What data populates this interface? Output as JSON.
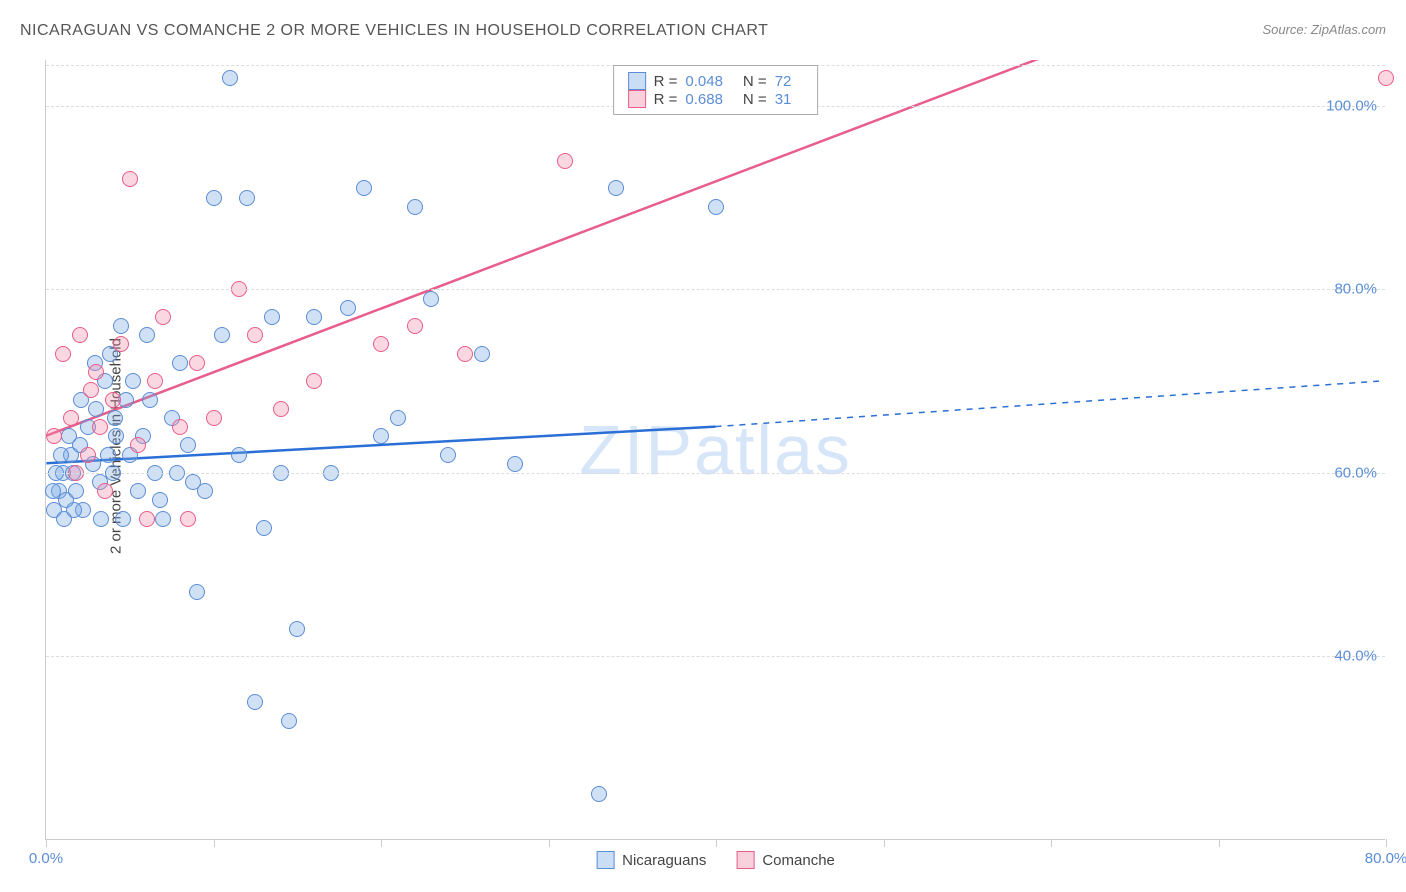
{
  "title": "NICARAGUAN VS COMANCHE 2 OR MORE VEHICLES IN HOUSEHOLD CORRELATION CHART",
  "source": "Source: ZipAtlas.com",
  "ylabel": "2 or more Vehicles in Household",
  "watermark_zip": "ZIP",
  "watermark_atlas": "atlas",
  "chart": {
    "type": "scatter",
    "xlim": [
      0,
      80
    ],
    "ylim": [
      20,
      105
    ],
    "xticks": [
      0,
      10,
      20,
      30,
      40,
      50,
      60,
      70,
      80
    ],
    "xtick_labels_show": [
      0,
      80
    ],
    "yticks": [
      40,
      60,
      80,
      100
    ],
    "ytick_fmt": "{v}.0%",
    "xtick_fmt": "{v}.0%",
    "background_color": "#ffffff",
    "grid_color": "#dddddd",
    "axis_color": "#cccccc",
    "label_color_axis": "#5b8dd6",
    "point_radius": 8,
    "series": [
      {
        "name": "Nicaraguans",
        "color_fill": "rgba(120,170,230,0.35)",
        "color_stroke": "#5b8dd6",
        "line_color": "#2a6fd6",
        "line_width": 2.5,
        "R": "0.048",
        "N": "72",
        "trend": {
          "x1": 0,
          "y1": 61,
          "x2_solid": 40,
          "y2_solid": 65,
          "x2_dash": 80,
          "y2_dash": 70
        },
        "points": [
          [
            0.5,
            56
          ],
          [
            0.8,
            58
          ],
          [
            1.0,
            60
          ],
          [
            1.2,
            57
          ],
          [
            1.5,
            62
          ],
          [
            1.8,
            58
          ],
          [
            2.0,
            63
          ],
          [
            2.2,
            56
          ],
          [
            2.5,
            65
          ],
          [
            2.8,
            61
          ],
          [
            3.0,
            67
          ],
          [
            3.2,
            59
          ],
          [
            3.5,
            70
          ],
          [
            3.8,
            73
          ],
          [
            4.0,
            60
          ],
          [
            4.2,
            64
          ],
          [
            4.5,
            76
          ],
          [
            4.8,
            68
          ],
          [
            5.0,
            62
          ],
          [
            5.5,
            58
          ],
          [
            6.0,
            75
          ],
          [
            6.5,
            60
          ],
          [
            7.0,
            55
          ],
          [
            7.5,
            66
          ],
          [
            8.0,
            72
          ],
          [
            8.5,
            63
          ],
          [
            9.0,
            47
          ],
          [
            9.5,
            58
          ],
          [
            10.0,
            90
          ],
          [
            10.5,
            75
          ],
          [
            11.0,
            103
          ],
          [
            11.5,
            62
          ],
          [
            12.0,
            90
          ],
          [
            12.5,
            35
          ],
          [
            13.0,
            54
          ],
          [
            13.5,
            77
          ],
          [
            14.0,
            60
          ],
          [
            14.5,
            33
          ],
          [
            15.0,
            43
          ],
          [
            16.0,
            77
          ],
          [
            17.0,
            60
          ],
          [
            18.0,
            78
          ],
          [
            19.0,
            91
          ],
          [
            20.0,
            64
          ],
          [
            21.0,
            66
          ],
          [
            22.0,
            89
          ],
          [
            23.0,
            79
          ],
          [
            24.0,
            62
          ],
          [
            26.0,
            73
          ],
          [
            28.0,
            61
          ],
          [
            33.0,
            25
          ],
          [
            34.0,
            91
          ],
          [
            40.0,
            89
          ],
          [
            3.3,
            55
          ],
          [
            4.6,
            55
          ],
          [
            1.1,
            55
          ],
          [
            0.6,
            60
          ],
          [
            1.4,
            64
          ],
          [
            2.1,
            68
          ],
          [
            2.9,
            72
          ],
          [
            5.2,
            70
          ],
          [
            6.2,
            68
          ],
          [
            3.7,
            62
          ],
          [
            4.1,
            66
          ],
          [
            5.8,
            64
          ],
          [
            6.8,
            57
          ],
          [
            7.8,
            60
          ],
          [
            8.8,
            59
          ],
          [
            1.6,
            60
          ],
          [
            0.9,
            62
          ],
          [
            0.4,
            58
          ],
          [
            1.7,
            56
          ]
        ]
      },
      {
        "name": "Comanche",
        "color_fill": "rgba(240,140,170,0.35)",
        "color_stroke": "#e85d8a",
        "line_color": "#e85d8a",
        "line_width": 2.5,
        "R": "0.688",
        "N": "31",
        "trend": {
          "x1": 0,
          "y1": 64,
          "x2_solid": 62,
          "y2_solid": 107,
          "x2_dash": 62,
          "y2_dash": 107
        },
        "points": [
          [
            0.5,
            64
          ],
          [
            1.0,
            73
          ],
          [
            1.5,
            66
          ],
          [
            2.0,
            75
          ],
          [
            2.5,
            62
          ],
          [
            3.0,
            71
          ],
          [
            3.5,
            58
          ],
          [
            4.0,
            68
          ],
          [
            4.5,
            74
          ],
          [
            5.0,
            92
          ],
          [
            5.5,
            63
          ],
          [
            6.0,
            55
          ],
          [
            6.5,
            70
          ],
          [
            7.0,
            77
          ],
          [
            8.0,
            65
          ],
          [
            8.5,
            55
          ],
          [
            9.0,
            72
          ],
          [
            10.0,
            66
          ],
          [
            11.5,
            80
          ],
          [
            12.5,
            75
          ],
          [
            14.0,
            67
          ],
          [
            16.0,
            70
          ],
          [
            20.0,
            74
          ],
          [
            22.0,
            76
          ],
          [
            25.0,
            73
          ],
          [
            31.0,
            94
          ],
          [
            36.0,
            103
          ],
          [
            80.0,
            103
          ],
          [
            3.2,
            65
          ],
          [
            2.7,
            69
          ],
          [
            1.8,
            60
          ]
        ]
      }
    ]
  },
  "rn_box": {
    "r_label": "R =",
    "n_label": "N ="
  },
  "bottom_legend": {
    "label1": "Nicaraguans",
    "label2": "Comanche"
  }
}
